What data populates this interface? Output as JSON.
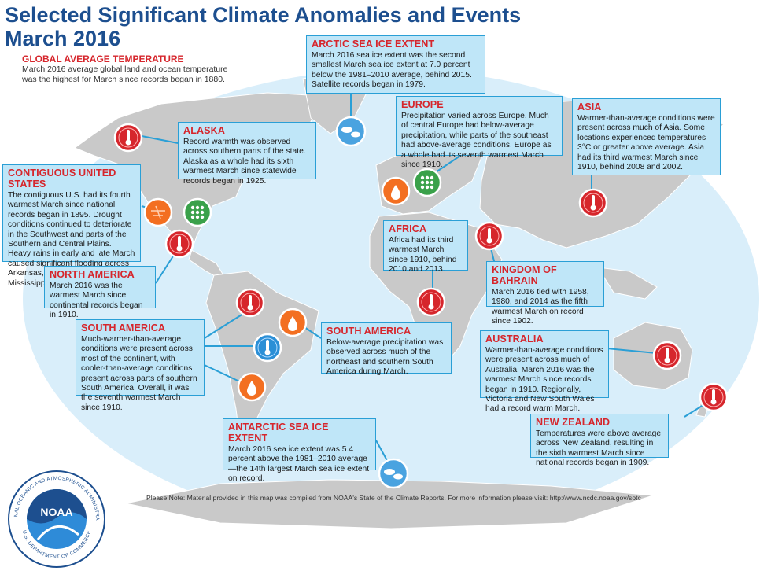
{
  "title_lines": [
    "Selected Significant Climate Anomalies and Events",
    "March 2016"
  ],
  "global": {
    "heading": "GLOBAL AVERAGE TEMPERATURE",
    "text": "March 2016 average global land and ocean temperature was the highest for March since records began in 1880."
  },
  "callouts": [
    {
      "key": "arctic",
      "heading": "ARCTIC SEA ICE EXTENT",
      "text": "March 2016 sea ice extent was the second smallest March sea ice extent at 7.0 percent below the 1981–2010 average, behind 2015. Satellite records began in 1979."
    },
    {
      "key": "alaska",
      "heading": "ALASKA",
      "text": "Record warmth was observed across southern parts of the state. Alaska as a whole had its sixth warmest March since statewide records began in 1925."
    },
    {
      "key": "europe",
      "heading": "EUROPE",
      "text": "Precipitation varied across Europe. Much of central Europe had below-average precipitation, while parts of the southeast had above-average conditions. Europe as a whole had its seventh warmest March since 1910."
    },
    {
      "key": "asia",
      "heading": "ASIA",
      "text": "Warmer-than-average conditions were present across much of Asia. Some locations experienced temperatures 3°C or greater above average. Asia had its third warmest March since 1910, behind 2008 and 2002."
    },
    {
      "key": "us",
      "heading": "CONTIGUOUS UNITED STATES",
      "text": "The contiguous U.S. had its fourth warmest March since national records began in 1895. Drought conditions continued to deteriorate in the Southwest and parts of the Southern and Central Plains. Heavy rains in early and late March caused significant flooding across Arkansas, Louisiana, and Mississippi."
    },
    {
      "key": "africa",
      "heading": "AFRICA",
      "text": "Africa had its third warmest March since 1910, behind 2010 and 2013."
    },
    {
      "key": "bahrain",
      "heading": "KINGDOM OF BAHRAIN",
      "text": "March 2016 tied with 1958, 1980, and 2014 as the fifth warmest March on record since 1902."
    },
    {
      "key": "namerica",
      "heading": "NORTH AMERICA",
      "text": "March 2016 was the warmest March since continental records began in 1910."
    },
    {
      "key": "samerica1",
      "heading": "SOUTH AMERICA",
      "text": "Much-warmer-than-average conditions were present across most of the continent, with cooler-than-average conditions present across parts of southern South America. Overall, it was the seventh warmest March since 1910."
    },
    {
      "key": "samerica2",
      "heading": "SOUTH AMERICA",
      "text": "Below-average precipitation was observed across much of the northeast and southern South America during March."
    },
    {
      "key": "australia",
      "heading": "AUSTRALIA",
      "text": "Warmer-than-average conditions were present across much of Australia. March 2016 was the warmest March since records began in 1910. Regionally, Victoria and New South Wales had a record warm March."
    },
    {
      "key": "nz",
      "heading": "NEW ZEALAND",
      "text": "Temperatures were above average across New Zealand, resulting in the sixth warmest March since national records began in 1909."
    },
    {
      "key": "antarctic",
      "heading": "ANTARCTIC SEA ICE EXTENT",
      "text": "March 2016 sea ice extent was 5.4 percent above the 1981–2010 average—the 14th largest March sea ice extent on record."
    }
  ],
  "markers": [
    {
      "id": "alaska-warm",
      "type": "warm-icon"
    },
    {
      "id": "arctic-ice",
      "type": "sea-ice-icon"
    },
    {
      "id": "us-drought",
      "type": "drought-icon"
    },
    {
      "id": "us-flood",
      "type": "heavy-rain-icon"
    },
    {
      "id": "namerica-warm",
      "type": "warm-icon"
    },
    {
      "id": "europe-dry",
      "type": "dry-icon"
    },
    {
      "id": "europe-wet",
      "type": "heavy-rain-icon"
    },
    {
      "id": "asia-warm",
      "type": "warm-icon"
    },
    {
      "id": "bahrain-warm",
      "type": "warm-icon"
    },
    {
      "id": "africa-warm",
      "type": "warm-icon"
    },
    {
      "id": "samerica-warm",
      "type": "warm-icon"
    },
    {
      "id": "samerica-dry-ne",
      "type": "dry-icon"
    },
    {
      "id": "samerica-cool",
      "type": "cool-icon"
    },
    {
      "id": "samerica-dry-s",
      "type": "dry-icon"
    },
    {
      "id": "australia-warm",
      "type": "warm-icon"
    },
    {
      "id": "nz-warm",
      "type": "warm-icon"
    },
    {
      "id": "antarctic-ice",
      "type": "sea-ice-icon"
    }
  ],
  "colors": {
    "ocean": "#d9eefa",
    "land": "#c9c9c9",
    "warm": "#d6262c",
    "dry": "#f36f21",
    "wet": "#3aa14a",
    "cool": "#2b8fd6",
    "ice": "#4aa3e0",
    "box_fill": "#bfe6f8",
    "box_border": "#2a9fd6",
    "heading": "#d6262c",
    "title": "#1d4f8f"
  },
  "logo": {
    "center_text": "NOAA",
    "ring_text": "NATIONAL OCEANIC AND ATMOSPHERIC ADMINISTRATION",
    "ring_text_bottom": "U.S. DEPARTMENT OF COMMERCE"
  },
  "note": "Please Note: Material provided in this map was compiled from NOAA's State of the Climate Reports. For more information please visit: http://www.ncdc.noaa.gov/sotc"
}
